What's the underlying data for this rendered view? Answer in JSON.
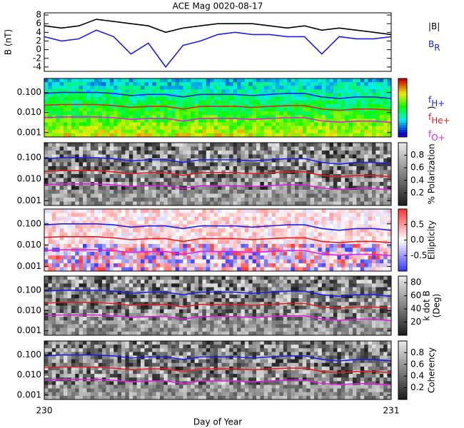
{
  "chart_data": [
    {
      "type": "line",
      "title": "ACE Mag 0020-08-17",
      "ylabel": "B (nT)",
      "x": [
        230.0,
        230.05,
        230.1,
        230.15,
        230.2,
        230.25,
        230.3,
        230.35,
        230.4,
        230.45,
        230.5,
        230.55,
        230.6,
        230.65,
        230.7,
        230.75,
        230.8,
        230.85,
        230.9,
        230.95,
        231.0
      ],
      "xlim": [
        230,
        231
      ],
      "ylim": [
        -5,
        8.5
      ],
      "yticks": [
        -4,
        -2,
        0,
        2,
        4,
        6,
        8
      ],
      "series": [
        {
          "name": "|B|",
          "color": "#000000",
          "values": [
            5.5,
            5,
            5.5,
            7,
            6.5,
            6,
            5.5,
            4,
            5,
            5.5,
            6,
            6,
            6,
            5.5,
            5,
            5.5,
            4.5,
            5,
            4.5,
            4,
            3.5
          ]
        },
        {
          "name": "B",
          "name_sub": "R",
          "color": "#2020e0",
          "values": [
            3,
            2,
            2.5,
            4.5,
            3,
            -1,
            1.5,
            -4,
            1,
            2,
            3.5,
            4,
            3.5,
            3.5,
            3,
            3,
            -1,
            3,
            2.5,
            2.5,
            3
          ]
        }
      ]
    },
    {
      "type": "spectrogram",
      "colormap": "rainbow",
      "colorbar_label": [
        ")"
      ],
      "log_y": true,
      "x": [
        230.0,
        230.05,
        230.1,
        230.15,
        230.2,
        230.25,
        230.3,
        230.35,
        230.4,
        230.45,
        230.5,
        230.55,
        230.6,
        230.65,
        230.7,
        230.75,
        230.8,
        230.85,
        230.9,
        230.95,
        231.0
      ],
      "xlim": [
        230,
        231
      ],
      "ylim": [
        0.0006,
        0.5
      ],
      "yticks": [
        {
          "value": 0.001,
          "label": "0.001"
        },
        {
          "value": 0.01,
          "label": "0.010"
        },
        {
          "value": 0.1,
          "label": "0.100"
        }
      ],
      "series": [
        {
          "name": "f",
          "name_sub": "H+",
          "color": "#2020e0",
          "values": [
            0.09,
            0.1,
            0.1,
            0.1,
            0.09,
            0.07,
            0.08,
            0.08,
            0.06,
            0.08,
            0.08,
            0.08,
            0.07,
            0.08,
            0.09,
            0.09,
            0.06,
            0.05,
            0.06,
            0.06,
            0.05
          ]
        },
        {
          "name": "f",
          "name_sub": "He+",
          "color": "#e02020",
          "values": [
            0.023,
            0.025,
            0.025,
            0.025,
            0.022,
            0.018,
            0.02,
            0.02,
            0.015,
            0.02,
            0.02,
            0.02,
            0.018,
            0.02,
            0.022,
            0.022,
            0.015,
            0.013,
            0.015,
            0.015,
            0.013
          ]
        },
        {
          "name": "f",
          "name_sub": "O+",
          "color": "#e020e0",
          "values": [
            0.0056,
            0.006,
            0.006,
            0.006,
            0.0055,
            0.0045,
            0.005,
            0.005,
            0.0037,
            0.005,
            0.005,
            0.005,
            0.0045,
            0.005,
            0.0055,
            0.0055,
            0.0038,
            0.0033,
            0.0037,
            0.0037,
            0.0032
          ]
        }
      ]
    },
    {
      "type": "spectrogram",
      "colormap": "gray",
      "colorbar_label": [
        "% Polarization"
      ],
      "clim": [
        0,
        1
      ],
      "cticks": [
        0.2,
        0.4,
        0.6,
        0.8
      ],
      "log_y": true,
      "x": [
        230.0,
        230.05,
        230.1,
        230.15,
        230.2,
        230.25,
        230.3,
        230.35,
        230.4,
        230.45,
        230.5,
        230.55,
        230.6,
        230.65,
        230.7,
        230.75,
        230.8,
        230.85,
        230.9,
        230.95,
        231.0
      ],
      "xlim": [
        230,
        231
      ],
      "ylim": [
        0.0006,
        0.5
      ],
      "yticks": [
        {
          "value": 0.001,
          "label": "0.001"
        },
        {
          "value": 0.01,
          "label": "0.010"
        },
        {
          "value": 0.1,
          "label": "0.100"
        }
      ],
      "series": [
        {
          "color": "#2020e0",
          "values": [
            0.09,
            0.1,
            0.1,
            0.1,
            0.09,
            0.07,
            0.08,
            0.08,
            0.06,
            0.08,
            0.08,
            0.08,
            0.07,
            0.08,
            0.09,
            0.09,
            0.06,
            0.05,
            0.06,
            0.06,
            0.05
          ]
        },
        {
          "color": "#e02020",
          "values": [
            0.023,
            0.025,
            0.025,
            0.025,
            0.022,
            0.018,
            0.02,
            0.02,
            0.015,
            0.02,
            0.02,
            0.02,
            0.018,
            0.02,
            0.022,
            0.022,
            0.015,
            0.013,
            0.015,
            0.015,
            0.013
          ]
        },
        {
          "color": "#e020e0",
          "values": [
            0.0056,
            0.006,
            0.006,
            0.006,
            0.0055,
            0.0045,
            0.005,
            0.005,
            0.0037,
            0.005,
            0.005,
            0.005,
            0.0045,
            0.005,
            0.0055,
            0.0055,
            0.0038,
            0.0033,
            0.0037,
            0.0037,
            0.0032
          ]
        }
      ]
    },
    {
      "type": "spectrogram",
      "colormap": "bwr",
      "colorbar_label": [
        "Ellipticity"
      ],
      "clim": [
        -1,
        1
      ],
      "cticks": [
        -0.5,
        {
          "value": 0,
          "label": "0.0"
        },
        0.5
      ],
      "log_y": true,
      "x": [
        230.0,
        230.05,
        230.1,
        230.15,
        230.2,
        230.25,
        230.3,
        230.35,
        230.4,
        230.45,
        230.5,
        230.55,
        230.6,
        230.65,
        230.7,
        230.75,
        230.8,
        230.85,
        230.9,
        230.95,
        231.0
      ],
      "xlim": [
        230,
        231
      ],
      "ylim": [
        0.0006,
        0.5
      ],
      "yticks": [
        {
          "value": 0.001,
          "label": "0.001"
        },
        {
          "value": 0.01,
          "label": "0.010"
        },
        {
          "value": 0.1,
          "label": "0.100"
        }
      ],
      "series": [
        {
          "color": "#2020e0",
          "values": [
            0.09,
            0.1,
            0.1,
            0.1,
            0.09,
            0.07,
            0.08,
            0.08,
            0.06,
            0.08,
            0.08,
            0.08,
            0.07,
            0.08,
            0.09,
            0.09,
            0.06,
            0.05,
            0.06,
            0.06,
            0.05
          ]
        },
        {
          "color": "#e02020",
          "values": [
            0.023,
            0.025,
            0.025,
            0.025,
            0.022,
            0.018,
            0.02,
            0.02,
            0.015,
            0.02,
            0.02,
            0.02,
            0.018,
            0.02,
            0.022,
            0.022,
            0.015,
            0.013,
            0.015,
            0.015,
            0.013
          ]
        },
        {
          "color": "#e020e0",
          "values": [
            0.0056,
            0.006,
            0.006,
            0.006,
            0.0055,
            0.0045,
            0.005,
            0.005,
            0.0037,
            0.005,
            0.005,
            0.005,
            0.0045,
            0.005,
            0.0055,
            0.0055,
            0.0038,
            0.0033,
            0.0037,
            0.0037,
            0.0032
          ]
        }
      ]
    },
    {
      "type": "spectrogram",
      "colormap": "gray",
      "colorbar_label": [
        "k dot B",
        "(Deg)"
      ],
      "clim": [
        0,
        90
      ],
      "cticks": [
        20,
        40,
        60,
        80
      ],
      "log_y": true,
      "x": [
        230.0,
        230.05,
        230.1,
        230.15,
        230.2,
        230.25,
        230.3,
        230.35,
        230.4,
        230.45,
        230.5,
        230.55,
        230.6,
        230.65,
        230.7,
        230.75,
        230.8,
        230.85,
        230.9,
        230.95,
        231.0
      ],
      "xlim": [
        230,
        231
      ],
      "ylim": [
        0.0006,
        0.5
      ],
      "yticks": [
        {
          "value": 0.001,
          "label": "0.001"
        },
        {
          "value": 0.01,
          "label": "0.010"
        },
        {
          "value": 0.1,
          "label": "0.100"
        }
      ],
      "series": [
        {
          "color": "#2020e0",
          "values": [
            0.09,
            0.1,
            0.1,
            0.1,
            0.09,
            0.07,
            0.08,
            0.08,
            0.06,
            0.08,
            0.08,
            0.08,
            0.07,
            0.08,
            0.09,
            0.09,
            0.06,
            0.05,
            0.06,
            0.06,
            0.05
          ]
        },
        {
          "color": "#e02020",
          "values": [
            0.023,
            0.025,
            0.025,
            0.025,
            0.022,
            0.018,
            0.02,
            0.02,
            0.015,
            0.02,
            0.02,
            0.02,
            0.018,
            0.02,
            0.022,
            0.022,
            0.015,
            0.013,
            0.015,
            0.015,
            0.013
          ]
        },
        {
          "color": "#e020e0",
          "values": [
            0.0056,
            0.006,
            0.006,
            0.006,
            0.0055,
            0.0045,
            0.005,
            0.005,
            0.0037,
            0.005,
            0.005,
            0.005,
            0.0045,
            0.005,
            0.0055,
            0.0055,
            0.0038,
            0.0033,
            0.0037,
            0.0037,
            0.0032
          ]
        }
      ]
    },
    {
      "type": "spectrogram",
      "colormap": "gray",
      "colorbar_label": [
        "Coherency"
      ],
      "clim": [
        0,
        1
      ],
      "cticks": [
        0.2,
        0.4,
        0.6,
        0.8
      ],
      "log_y": true,
      "x": [
        230.0,
        230.05,
        230.1,
        230.15,
        230.2,
        230.25,
        230.3,
        230.35,
        230.4,
        230.45,
        230.5,
        230.55,
        230.6,
        230.65,
        230.7,
        230.75,
        230.8,
        230.85,
        230.9,
        230.95,
        231.0
      ],
      "xlim": [
        230,
        231
      ],
      "ylim": [
        0.0006,
        0.5
      ],
      "xticks": [
        230,
        231
      ],
      "xlabel": "Day of Year",
      "yticks": [
        {
          "value": 0.001,
          "label": "0.001"
        },
        {
          "value": 0.01,
          "label": "0.010"
        },
        {
          "value": 0.1,
          "label": "0.100"
        }
      ],
      "series": [
        {
          "color": "#2020e0",
          "values": [
            0.09,
            0.1,
            0.1,
            0.1,
            0.09,
            0.07,
            0.08,
            0.08,
            0.06,
            0.08,
            0.08,
            0.08,
            0.07,
            0.08,
            0.09,
            0.09,
            0.06,
            0.05,
            0.06,
            0.06,
            0.05
          ]
        },
        {
          "color": "#e02020",
          "values": [
            0.023,
            0.025,
            0.025,
            0.025,
            0.022,
            0.018,
            0.02,
            0.02,
            0.015,
            0.02,
            0.02,
            0.02,
            0.018,
            0.02,
            0.022,
            0.022,
            0.015,
            0.013,
            0.015,
            0.015,
            0.013
          ]
        },
        {
          "color": "#e020e0",
          "values": [
            0.0056,
            0.006,
            0.006,
            0.006,
            0.0055,
            0.0045,
            0.005,
            0.005,
            0.0037,
            0.005,
            0.005,
            0.005,
            0.0045,
            0.005,
            0.0055,
            0.0055,
            0.0038,
            0.0033,
            0.0037,
            0.0037,
            0.0032
          ]
        }
      ]
    }
  ]
}
